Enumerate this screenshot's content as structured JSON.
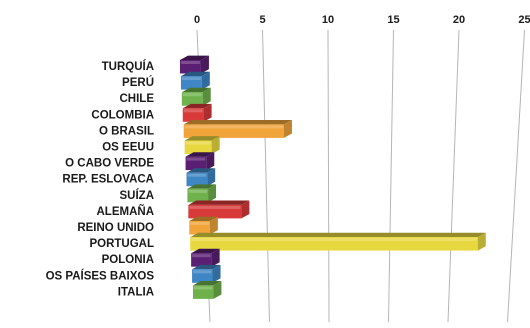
{
  "chart_data": {
    "type": "bar",
    "orientation": "horizontal",
    "style": "3d",
    "categories": [
      "TURQUÍA",
      "PERÚ",
      "CHILE",
      "COLOMBIA",
      "O BRASIL",
      "OS EEUU",
      "O CABO VERDE",
      "REP. ESLOVACA",
      "SUÍZA",
      "ALEMAÑA",
      "REINO UNIDO",
      "PORTUGAL",
      "POLONIA",
      "OS PAÍSES BAIXOS",
      "ITALIA"
    ],
    "values": [
      0.3,
      0.3,
      0.3,
      0.3,
      6.6,
      0.8,
      0.3,
      0.3,
      0.3,
      3.0,
      0.3,
      23.0,
      0.3,
      0.3,
      0.3
    ],
    "colors": [
      "#5a1f72",
      "#3f86c4",
      "#6fb24b",
      "#d83a3a",
      "#f0a43a",
      "#e8d840",
      "#5a1f72",
      "#3f86c4",
      "#6fb24b",
      "#d83a3a",
      "#f0a43a",
      "#e8d840",
      "#5a1f72",
      "#3f86c4",
      "#6fb24b"
    ],
    "xticks": [
      "0",
      "5",
      "10",
      "15",
      "20",
      "25"
    ],
    "xlim": [
      0,
      25
    ],
    "grid": true,
    "legend": "none",
    "title": "",
    "xlabel": "",
    "ylabel": ""
  }
}
